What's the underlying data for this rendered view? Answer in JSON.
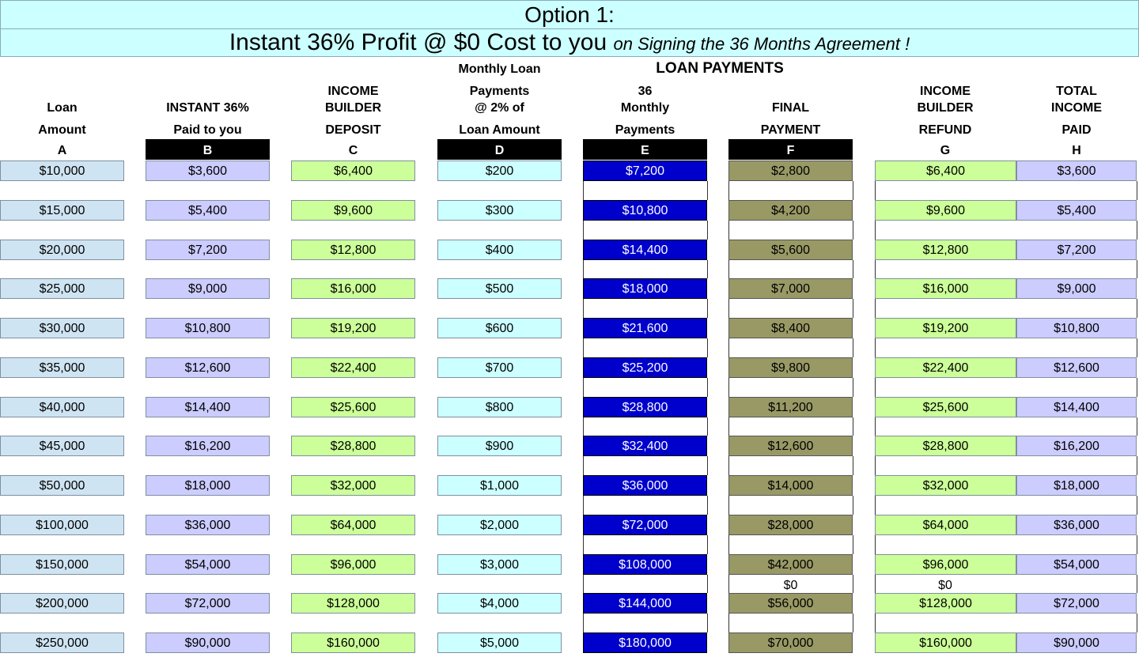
{
  "banner": {
    "line1": "Option 1:",
    "line2_main": "Instant 36% Profit @ $0 Cost to you",
    "line2_italic": "on Signing the 36 Months Agreement !"
  },
  "headers": {
    "loan_payments": "LOAN PAYMENTS",
    "A": [
      "Loan",
      "Amount"
    ],
    "B": [
      "INSTANT 36%",
      "Paid to you"
    ],
    "C": [
      "INCOME",
      "BUILDER",
      "DEPOSIT"
    ],
    "D": [
      "Monthly Loan",
      "Payments",
      "@ 2% of",
      "Loan Amount"
    ],
    "E": [
      "36",
      "Monthly",
      "Payments"
    ],
    "F": [
      "FINAL",
      "PAYMENT"
    ],
    "G": [
      "INCOME",
      "BUILDER",
      "REFUND"
    ],
    "H": [
      "TOTAL",
      "INCOME",
      "PAID"
    ]
  },
  "letters": [
    "A",
    "B",
    "C",
    "D",
    "E",
    "F",
    "G",
    "H"
  ],
  "rows": [
    [
      "$10,000",
      "$3,600",
      "$6,400",
      "$200",
      "$7,200",
      "$2,800",
      "$6,400",
      "$3,600"
    ],
    [
      "$15,000",
      "$5,400",
      "$9,600",
      "$300",
      "$10,800",
      "$4,200",
      "$9,600",
      "$5,400"
    ],
    [
      "$20,000",
      "$7,200",
      "$12,800",
      "$400",
      "$14,400",
      "$5,600",
      "$12,800",
      "$7,200"
    ],
    [
      "$25,000",
      "$9,000",
      "$16,000",
      "$500",
      "$18,000",
      "$7,000",
      "$16,000",
      "$9,000"
    ],
    [
      "$30,000",
      "$10,800",
      "$19,200",
      "$600",
      "$21,600",
      "$8,400",
      "$19,200",
      "$10,800"
    ],
    [
      "$35,000",
      "$12,600",
      "$22,400",
      "$700",
      "$25,200",
      "$9,800",
      "$22,400",
      "$12,600"
    ],
    [
      "$40,000",
      "$14,400",
      "$25,600",
      "$800",
      "$28,800",
      "$11,200",
      "$25,600",
      "$14,400"
    ],
    [
      "$45,000",
      "$16,200",
      "$28,800",
      "$900",
      "$32,400",
      "$12,600",
      "$28,800",
      "$16,200"
    ],
    [
      "$50,000",
      "$18,000",
      "$32,000",
      "$1,000",
      "$36,000",
      "$14,000",
      "$32,000",
      "$18,000"
    ],
    [
      "$100,000",
      "$36,000",
      "$64,000",
      "$2,000",
      "$72,000",
      "$28,000",
      "$64,000",
      "$36,000"
    ],
    [
      "$150,000",
      "$54,000",
      "$96,000",
      "$3,000",
      "$108,000",
      "$42,000",
      "$96,000",
      "$54,000"
    ],
    [
      "$200,000",
      "$72,000",
      "$128,000",
      "$4,000",
      "$144,000",
      "$56,000",
      "$128,000",
      "$72,000"
    ],
    [
      "$250,000",
      "$90,000",
      "$160,000",
      "$5,000",
      "$180,000",
      "$70,000",
      "$160,000",
      "$90,000"
    ]
  ],
  "extra_zero": {
    "F": "$0",
    "G": "$0"
  }
}
